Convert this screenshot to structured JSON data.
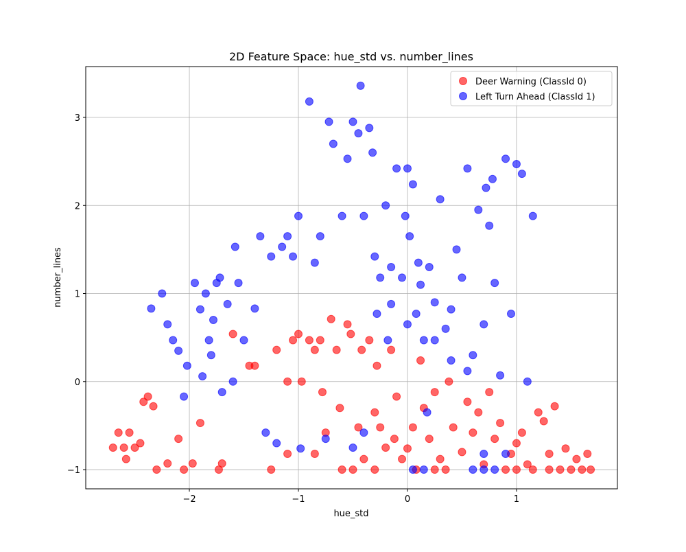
{
  "chart_data": {
    "type": "scatter",
    "title": "2D Feature Space: hue_std vs. number_lines",
    "x_label": "hue_std",
    "y_label": "number_lines",
    "xlim": [
      -2.95,
      1.925
    ],
    "ylim": [
      -1.218,
      3.577
    ],
    "xticks": [
      {
        "value": -2,
        "label": "−2"
      },
      {
        "value": -1,
        "label": "−1"
      },
      0,
      1
    ],
    "yticks": [
      {
        "value": -1,
        "label": "−1"
      },
      0,
      1,
      2,
      3
    ],
    "grid": true,
    "legend": "upper-right",
    "alpha": 0.6,
    "series": [
      {
        "name": "Deer Warning (ClassId 0)",
        "color": "red",
        "x": [
          -2.7,
          -2.65,
          -2.6,
          -2.58,
          -2.55,
          -2.5,
          -2.45,
          -2.42,
          -2.38,
          -2.33,
          -2.3,
          -2.2,
          -2.1,
          -2.05,
          -1.97,
          -1.9,
          -1.73,
          -1.7,
          -1.6,
          -1.45,
          -1.4,
          -1.25,
          -1.2,
          -1.1,
          -1.05,
          -1.0,
          -0.97,
          -0.9,
          -0.85,
          -0.8,
          -0.78,
          -0.75,
          -0.7,
          -0.65,
          -0.62,
          -0.55,
          -0.52,
          -0.5,
          -0.45,
          -0.42,
          -0.4,
          -0.35,
          -0.3,
          -0.28,
          -0.25,
          -0.2,
          -0.15,
          -0.12,
          -0.1,
          -0.05,
          0.0,
          0.05,
          0.08,
          0.12,
          0.15,
          0.2,
          0.25,
          0.3,
          0.35,
          0.38,
          0.42,
          0.5,
          0.55,
          0.6,
          0.65,
          0.7,
          0.75,
          0.8,
          0.85,
          0.9,
          0.95,
          1.0,
          1.05,
          1.1,
          1.15,
          1.2,
          1.25,
          1.3,
          1.35,
          1.4,
          1.45,
          1.5,
          1.55,
          1.6,
          1.65,
          1.68,
          -0.3,
          -0.6,
          0.25,
          1.0,
          1.3,
          -0.85,
          -1.1
        ],
        "y": [
          -0.75,
          -0.58,
          -0.75,
          -0.88,
          -0.58,
          -0.75,
          -0.7,
          -0.23,
          -0.17,
          -0.28,
          -1.0,
          -0.93,
          -0.65,
          -1.0,
          -0.93,
          -0.47,
          -1.0,
          -0.93,
          0.54,
          0.18,
          0.18,
          -1.0,
          0.36,
          0.0,
          0.47,
          0.54,
          0.0,
          0.47,
          0.36,
          0.47,
          -0.12,
          -0.58,
          0.71,
          0.36,
          -0.3,
          0.65,
          0.54,
          -1.0,
          -0.52,
          0.36,
          -0.88,
          0.47,
          -0.35,
          0.18,
          -0.52,
          -0.75,
          0.36,
          -0.65,
          -0.17,
          -0.88,
          -0.76,
          -0.52,
          -1.0,
          0.24,
          -0.3,
          -0.65,
          -0.12,
          -0.88,
          -1.0,
          0.0,
          -0.52,
          -0.8,
          -0.23,
          -0.58,
          -0.35,
          -0.94,
          -0.12,
          -0.65,
          -0.47,
          -1.0,
          -0.82,
          -0.7,
          -0.58,
          -0.94,
          -1.0,
          -0.35,
          -0.45,
          -0.82,
          -0.28,
          -1.0,
          -0.76,
          -1.0,
          -0.88,
          -1.0,
          -0.82,
          -1.0,
          -1.0,
          -1.0,
          -1.0,
          -1.0,
          -1.0,
          -0.82,
          -0.82
        ]
      },
      {
        "name": "Left Turn Ahead (ClassId 1)",
        "color": "blue",
        "x": [
          -2.35,
          -2.25,
          -2.2,
          -2.15,
          -2.1,
          -2.05,
          -2.02,
          -1.95,
          -1.9,
          -1.88,
          -1.85,
          -1.82,
          -1.8,
          -1.78,
          -1.75,
          -1.72,
          -1.7,
          -1.65,
          -1.6,
          -1.58,
          -1.55,
          -1.5,
          -1.4,
          -1.35,
          -1.3,
          -1.25,
          -1.2,
          -1.15,
          -1.1,
          -1.05,
          -1.0,
          -0.98,
          -0.9,
          -0.85,
          -0.8,
          -0.75,
          -0.72,
          -0.68,
          -0.6,
          -0.55,
          -0.5,
          -0.45,
          -0.43,
          -0.4,
          -0.35,
          -0.32,
          -0.3,
          -0.28,
          -0.25,
          -0.2,
          -0.18,
          -0.15,
          -0.1,
          -0.05,
          -0.02,
          0.0,
          0.02,
          0.05,
          0.08,
          0.1,
          0.12,
          0.15,
          0.18,
          0.2,
          0.25,
          0.3,
          0.35,
          0.4,
          0.45,
          0.5,
          0.55,
          0.6,
          0.65,
          0.7,
          0.72,
          0.75,
          0.78,
          0.8,
          0.85,
          0.9,
          0.95,
          1.0,
          1.05,
          1.1,
          1.15,
          -0.4,
          0.05,
          0.15,
          0.6,
          0.7,
          0.8,
          0.9,
          0.7,
          0.25,
          -0.15,
          0.0,
          -0.5,
          0.55,
          0.4
        ],
        "y": [
          0.83,
          1.0,
          0.65,
          0.47,
          0.35,
          -0.17,
          0.18,
          1.12,
          0.82,
          0.06,
          1.0,
          0.47,
          0.3,
          0.7,
          1.12,
          1.18,
          -0.12,
          0.88,
          0.0,
          1.53,
          1.12,
          0.47,
          0.83,
          1.65,
          -0.58,
          1.42,
          -0.7,
          1.53,
          1.65,
          1.42,
          1.88,
          -0.76,
          3.18,
          1.35,
          1.65,
          -0.65,
          2.95,
          2.7,
          1.88,
          2.53,
          2.95,
          2.82,
          3.36,
          1.88,
          2.88,
          2.6,
          1.42,
          0.77,
          1.18,
          2.0,
          0.47,
          1.3,
          2.42,
          1.18,
          1.88,
          2.42,
          1.65,
          2.24,
          0.77,
          1.35,
          1.1,
          0.47,
          -0.35,
          1.3,
          0.9,
          2.07,
          0.6,
          0.82,
          1.5,
          1.18,
          2.42,
          0.3,
          1.95,
          0.65,
          2.2,
          1.77,
          2.3,
          1.12,
          0.07,
          2.53,
          0.77,
          2.47,
          2.36,
          0.0,
          1.88,
          -0.58,
          -1.0,
          -1.0,
          -1.0,
          -1.0,
          -1.0,
          -0.82,
          -0.82,
          0.47,
          0.88,
          0.65,
          -0.75,
          0.12,
          0.24
        ]
      }
    ]
  }
}
